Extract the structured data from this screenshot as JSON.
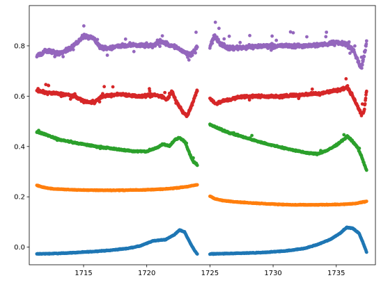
{
  "chart_data": {
    "type": "scatter",
    "xlim": [
      1710.7,
      1738.1
    ],
    "ylim": [
      -0.07,
      0.96
    ],
    "x_ticks": [
      1715,
      1720,
      1725,
      1730,
      1735
    ],
    "x_tick_labels": [
      "1715",
      "1720",
      "1725",
      "1730",
      "1735"
    ],
    "y_ticks": [
      0.0,
      0.2,
      0.4,
      0.6,
      0.8
    ],
    "y_tick_labels": [
      "0.0",
      "0.2",
      "0.4",
      "0.6",
      "0.8"
    ],
    "grid": false,
    "segments": [
      [
        1711.3,
        1724.0
      ],
      [
        1725.0,
        1737.4
      ]
    ],
    "series": [
      {
        "color": "#1f77b4",
        "knots": [
          [
            [
              1711.3,
              -0.027
            ],
            [
              1713.0,
              -0.025
            ],
            [
              1715.0,
              -0.02
            ],
            [
              1717.0,
              -0.013
            ],
            [
              1718.5,
              -0.005
            ],
            [
              1719.5,
              0.005
            ],
            [
              1720.5,
              0.025
            ],
            [
              1721.5,
              0.03
            ],
            [
              1722.2,
              0.05
            ],
            [
              1722.6,
              0.068
            ],
            [
              1723.0,
              0.06
            ],
            [
              1723.4,
              0.02
            ],
            [
              1723.8,
              -0.015
            ],
            [
              1724.0,
              -0.027
            ]
          ],
          [
            [
              1725.0,
              -0.027
            ],
            [
              1727.0,
              -0.025
            ],
            [
              1729.0,
              -0.022
            ],
            [
              1731.0,
              -0.015
            ],
            [
              1732.5,
              -0.005
            ],
            [
              1733.5,
              0.01
            ],
            [
              1734.5,
              0.03
            ],
            [
              1735.3,
              0.055
            ],
            [
              1735.8,
              0.078
            ],
            [
              1736.3,
              0.075
            ],
            [
              1736.8,
              0.055
            ],
            [
              1737.1,
              0.02
            ],
            [
              1737.4,
              -0.02
            ]
          ]
        ]
      },
      {
        "color": "#ff7f0e",
        "knots": [
          [
            [
              1711.3,
              0.245
            ],
            [
              1711.8,
              0.238
            ],
            [
              1712.5,
              0.232
            ],
            [
              1714.0,
              0.228
            ],
            [
              1716.0,
              0.226
            ],
            [
              1718.0,
              0.226
            ],
            [
              1720.0,
              0.228
            ],
            [
              1721.5,
              0.231
            ],
            [
              1722.5,
              0.236
            ],
            [
              1723.3,
              0.241
            ],
            [
              1724.0,
              0.248
            ]
          ],
          [
            [
              1725.0,
              0.203
            ],
            [
              1725.4,
              0.192
            ],
            [
              1726.0,
              0.185
            ],
            [
              1727.5,
              0.178
            ],
            [
              1729.5,
              0.172
            ],
            [
              1731.5,
              0.168
            ],
            [
              1733.5,
              0.168
            ],
            [
              1735.5,
              0.17
            ],
            [
              1736.5,
              0.173
            ],
            [
              1737.4,
              0.182
            ]
          ]
        ]
      },
      {
        "color": "#2ca02c",
        "knots": [
          [
            [
              1711.3,
              0.458
            ],
            [
              1712.0,
              0.448
            ],
            [
              1713.0,
              0.428
            ],
            [
              1714.5,
              0.413
            ],
            [
              1716.0,
              0.4
            ],
            [
              1717.5,
              0.39
            ],
            [
              1719.0,
              0.381
            ],
            [
              1720.0,
              0.38
            ],
            [
              1720.8,
              0.395
            ],
            [
              1721.3,
              0.41
            ],
            [
              1721.8,
              0.402
            ],
            [
              1722.2,
              0.425
            ],
            [
              1722.6,
              0.435
            ],
            [
              1723.0,
              0.42
            ],
            [
              1723.4,
              0.37
            ],
            [
              1723.7,
              0.338
            ],
            [
              1724.0,
              0.328
            ]
          ],
          [
            [
              1725.0,
              0.488
            ],
            [
              1725.5,
              0.475
            ],
            [
              1726.5,
              0.455
            ],
            [
              1728.0,
              0.432
            ],
            [
              1729.5,
              0.41
            ],
            [
              1731.0,
              0.392
            ],
            [
              1732.5,
              0.376
            ],
            [
              1733.5,
              0.37
            ],
            [
              1734.3,
              0.385
            ],
            [
              1735.0,
              0.405
            ],
            [
              1735.5,
              0.425
            ],
            [
              1735.9,
              0.44
            ],
            [
              1736.3,
              0.42
            ],
            [
              1736.7,
              0.395
            ],
            [
              1737.0,
              0.36
            ],
            [
              1737.4,
              0.305
            ]
          ]
        ]
      },
      {
        "color": "#d62728",
        "knots": [
          [
            [
              1711.3,
              0.62
            ],
            [
              1712.5,
              0.612
            ],
            [
              1713.8,
              0.605
            ],
            [
              1714.5,
              0.595
            ],
            [
              1715.0,
              0.58
            ],
            [
              1715.8,
              0.575
            ],
            [
              1716.5,
              0.6
            ],
            [
              1718.0,
              0.608
            ],
            [
              1719.5,
              0.598
            ],
            [
              1720.5,
              0.605
            ],
            [
              1721.2,
              0.6
            ],
            [
              1721.6,
              0.585
            ],
            [
              1722.0,
              0.618
            ],
            [
              1722.4,
              0.575
            ],
            [
              1722.8,
              0.54
            ],
            [
              1723.2,
              0.52
            ],
            [
              1723.6,
              0.57
            ],
            [
              1724.0,
              0.625
            ]
          ],
          [
            [
              1725.0,
              0.59
            ],
            [
              1725.5,
              0.57
            ],
            [
              1726.0,
              0.58
            ],
            [
              1727.5,
              0.598
            ],
            [
              1729.0,
              0.6
            ],
            [
              1730.5,
              0.598
            ],
            [
              1732.0,
              0.605
            ],
            [
              1733.5,
              0.61
            ],
            [
              1734.5,
              0.618
            ],
            [
              1735.5,
              0.628
            ],
            [
              1735.9,
              0.635
            ],
            [
              1736.3,
              0.6
            ],
            [
              1736.7,
              0.56
            ],
            [
              1737.0,
              0.525
            ],
            [
              1737.2,
              0.54
            ],
            [
              1737.4,
              0.62
            ]
          ]
        ]
      },
      {
        "color": "#9467bd",
        "knots": [
          [
            [
              1711.3,
              0.76
            ],
            [
              1712.0,
              0.78
            ],
            [
              1713.0,
              0.77
            ],
            [
              1714.0,
              0.79
            ],
            [
              1714.5,
              0.815
            ],
            [
              1715.0,
              0.84
            ],
            [
              1715.8,
              0.83
            ],
            [
              1716.3,
              0.795
            ],
            [
              1717.0,
              0.79
            ],
            [
              1718.0,
              0.8
            ],
            [
              1719.5,
              0.802
            ],
            [
              1720.5,
              0.8
            ],
            [
              1721.0,
              0.82
            ],
            [
              1721.5,
              0.808
            ],
            [
              1722.3,
              0.795
            ],
            [
              1723.0,
              0.775
            ],
            [
              1723.5,
              0.76
            ],
            [
              1724.0,
              0.8
            ]
          ],
          [
            [
              1725.0,
              0.8
            ],
            [
              1725.4,
              0.84
            ],
            [
              1725.8,
              0.81
            ],
            [
              1726.5,
              0.79
            ],
            [
              1728.0,
              0.795
            ],
            [
              1729.5,
              0.8
            ],
            [
              1731.0,
              0.8
            ],
            [
              1732.5,
              0.8
            ],
            [
              1734.0,
              0.805
            ],
            [
              1735.0,
              0.815
            ],
            [
              1735.8,
              0.808
            ],
            [
              1736.3,
              0.785
            ],
            [
              1736.7,
              0.74
            ],
            [
              1737.0,
              0.71
            ],
            [
              1737.2,
              0.76
            ],
            [
              1737.4,
              0.82
            ]
          ]
        ]
      }
    ]
  }
}
